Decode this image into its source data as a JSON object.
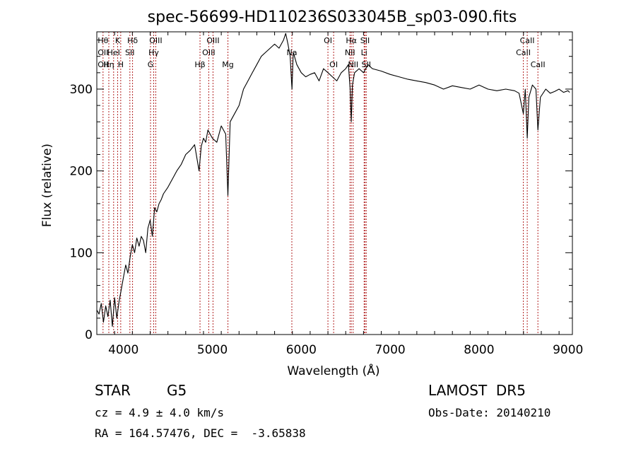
{
  "chart_data": {
    "type": "line",
    "title": "spec-56699-HD110236S033045B_sp03-090.fits",
    "xlabel": "Wavelength (Å)",
    "ylabel": "Flux (relative)",
    "xlim": [
      3700,
      9050
    ],
    "ylim": [
      0,
      370
    ],
    "x_ticks": [
      4000,
      5000,
      6000,
      7000,
      8000,
      9000
    ],
    "y_ticks": [
      0,
      100,
      200,
      300
    ],
    "grid": false,
    "line_color": "#000000",
    "marker_color": "#b22222",
    "spectrum": {
      "x": [
        3700,
        3725,
        3750,
        3775,
        3800,
        3825,
        3850,
        3875,
        3900,
        3925,
        3950,
        3975,
        4000,
        4025,
        4050,
        4075,
        4100,
        4125,
        4150,
        4175,
        4200,
        4225,
        4250,
        4275,
        4300,
        4325,
        4350,
        4375,
        4400,
        4425,
        4450,
        4500,
        4550,
        4600,
        4650,
        4700,
        4750,
        4800,
        4850,
        4875,
        4900,
        4925,
        4950,
        5000,
        5050,
        5100,
        5150,
        5175,
        5200,
        5250,
        5300,
        5350,
        5400,
        5450,
        5500,
        5550,
        5600,
        5650,
        5700,
        5750,
        5800,
        5825,
        5850,
        5875,
        5890,
        5896,
        5910,
        5950,
        6000,
        6050,
        6100,
        6150,
        6200,
        6250,
        6300,
        6350,
        6400,
        6450,
        6500,
        6530,
        6550,
        6563,
        6575,
        6600,
        6650,
        6700,
        6750,
        6800,
        6900,
        7000,
        7100,
        7200,
        7300,
        7400,
        7500,
        7600,
        7700,
        7800,
        7900,
        8000,
        8100,
        8200,
        8300,
        8400,
        8450,
        8498,
        8520,
        8542,
        8560,
        8600,
        8640,
        8662,
        8690,
        8750,
        8800,
        8850,
        8900,
        8950,
        9000,
        9020
      ],
      "y": [
        30,
        25,
        38,
        15,
        35,
        22,
        42,
        10,
        45,
        20,
        40,
        55,
        70,
        85,
        75,
        95,
        110,
        100,
        118,
        108,
        120,
        115,
        100,
        130,
        140,
        120,
        155,
        150,
        160,
        165,
        172,
        180,
        190,
        200,
        208,
        220,
        225,
        232,
        200,
        230,
        240,
        235,
        250,
        240,
        235,
        255,
        245,
        170,
        260,
        270,
        280,
        300,
        310,
        320,
        330,
        340,
        345,
        350,
        355,
        350,
        360,
        368,
        355,
        340,
        310,
        300,
        345,
        330,
        320,
        315,
        318,
        320,
        310,
        325,
        320,
        315,
        310,
        320,
        325,
        330,
        300,
        260,
        305,
        320,
        325,
        320,
        330,
        325,
        322,
        318,
        315,
        312,
        310,
        308,
        305,
        300,
        304,
        302,
        300,
        305,
        300,
        298,
        300,
        298,
        295,
        270,
        300,
        240,
        290,
        305,
        300,
        250,
        290,
        300,
        295,
        297,
        300,
        296,
        298,
        296
      ]
    },
    "lines": [
      {
        "x": 3770,
        "labels": [
          "Hθ",
          "OII",
          "OII"
        ]
      },
      {
        "x": 3835,
        "labels": [
          "",
          "",
          "Hη"
        ]
      },
      {
        "x": 3889,
        "labels": [
          "",
          "HeI",
          ""
        ]
      },
      {
        "x": 3934,
        "labels": [
          "K",
          "",
          ""
        ]
      },
      {
        "x": 3969,
        "labels": [
          "",
          "",
          "H"
        ]
      },
      {
        "x": 4072,
        "labels": [
          "",
          "SII",
          ""
        ]
      },
      {
        "x": 4102,
        "labels": [
          "Hδ",
          "",
          ""
        ]
      },
      {
        "x": 4304,
        "labels": [
          "",
          "",
          "G"
        ]
      },
      {
        "x": 4340,
        "labels": [
          "",
          "Hγ",
          ""
        ]
      },
      {
        "x": 4363,
        "labels": [
          "OIII",
          "",
          ""
        ]
      },
      {
        "x": 4861,
        "labels": [
          "",
          "",
          "Hβ"
        ]
      },
      {
        "x": 4959,
        "labels": [
          "",
          "OIII",
          ""
        ]
      },
      {
        "x": 5007,
        "labels": [
          "OIII",
          "",
          ""
        ]
      },
      {
        "x": 5175,
        "labels": [
          "",
          "",
          "Mg"
        ]
      },
      {
        "x": 5894,
        "labels": [
          "",
          "Na",
          ""
        ]
      },
      {
        "x": 6300,
        "labels": [
          "OI",
          "",
          ""
        ]
      },
      {
        "x": 6364,
        "labels": [
          "",
          "",
          "OI"
        ]
      },
      {
        "x": 6548,
        "labels": [
          "",
          "NII",
          ""
        ]
      },
      {
        "x": 6563,
        "labels": [
          "Hα",
          "",
          ""
        ]
      },
      {
        "x": 6584,
        "labels": [
          "",
          "",
          "NII"
        ]
      },
      {
        "x": 6707,
        "labels": [
          "",
          "Li",
          ""
        ]
      },
      {
        "x": 6717,
        "labels": [
          "SII",
          "",
          ""
        ]
      },
      {
        "x": 6731,
        "labels": [
          "",
          "",
          "SII"
        ]
      },
      {
        "x": 8498,
        "labels": [
          "",
          "CaII",
          ""
        ]
      },
      {
        "x": 8542,
        "labels": [
          "CaII",
          "",
          ""
        ]
      },
      {
        "x": 8662,
        "labels": [
          "",
          "",
          "CaII"
        ]
      }
    ]
  },
  "info": {
    "object_class": "STAR",
    "subclass": "G5",
    "survey": "LAMOST  DR5",
    "cz_line": "cz = 4.9 ± 4.0 km/s",
    "obs_date": "Obs-Date: 20140210",
    "coords": "RA = 164.57476, DEC =  -3.65838"
  }
}
